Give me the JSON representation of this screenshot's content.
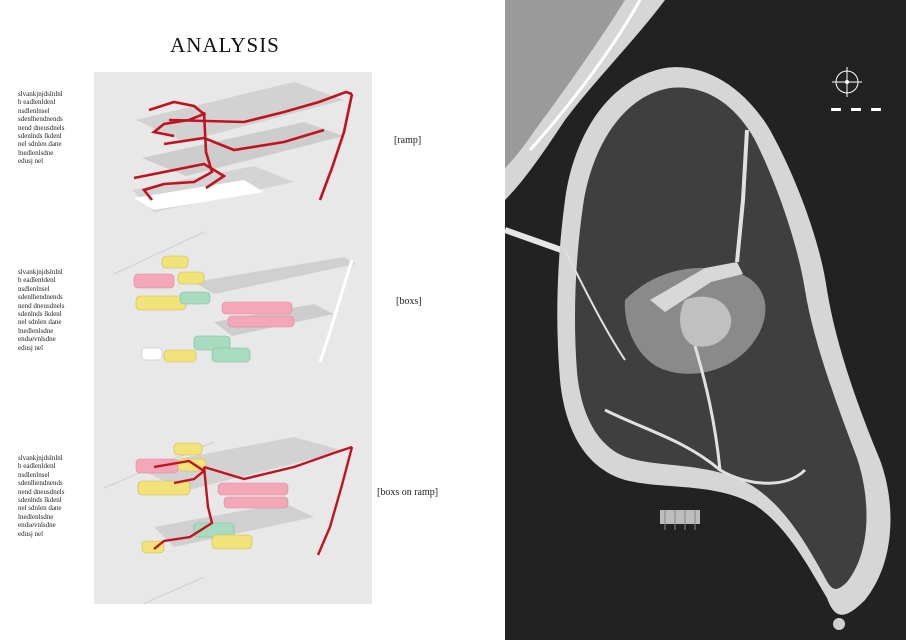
{
  "title": "ANALYSIS",
  "sections": [
    {
      "label": "[ramp]",
      "description": [
        "slvankjnjdslnlnl",
        "b eadlenldenl",
        "nsdlenlnsel",
        "sdenlhendnends",
        "nend dneusdnels",
        "sdenlnds lkdenl",
        "nel sdnlen dane",
        "lnedlenlsdne",
        "edusj nel"
      ]
    },
    {
      "label": "[boxs]",
      "description": [
        "slvankjnjdslnlnl",
        "b eadlenldenl",
        "nsdlenlnsel",
        "sdenlhendnends",
        "nend dneusdnels",
        "sdenlnds lkdenl",
        "nel sdnlen dane",
        "lnedlenlsdne",
        "endsevnlsdne",
        "edusj nel"
      ]
    },
    {
      "label": "[boxs on ramp]",
      "description": [
        "slvankjnjdslnlnl",
        "b eadlenldenl",
        "nsdlenlnsel",
        "sdenlhendnends",
        "nend dneusdnels",
        "sdenlnds lkdenl",
        "nel sdnlen dane",
        "lnedlenlsdne",
        "endsevnlsdne",
        "edusj nel"
      ]
    }
  ],
  "colors": {
    "ramp": "#c1121f",
    "box_pink": "#f3a7b8",
    "box_yellow": "#f2e27a",
    "box_green": "#a8dcc0",
    "panel": "#e8e8e8",
    "water": "#222222",
    "land": "#d6d6d6",
    "forest": "#3f3f3f"
  },
  "icons": {
    "north": "compass-icon",
    "scale": "scale-bar-icon"
  }
}
